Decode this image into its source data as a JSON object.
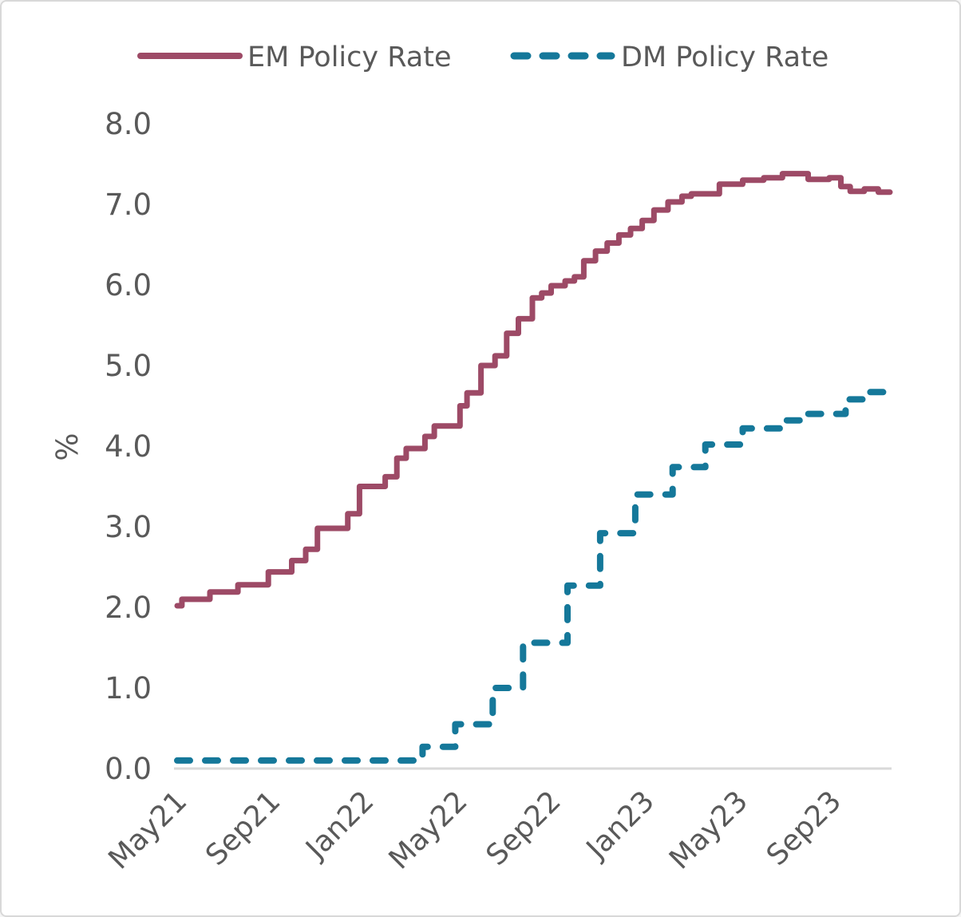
{
  "figure": {
    "background": "#ffffff",
    "border_color": "#d8d8d8",
    "text_color": "#595959",
    "axis_line_color": "#d9d9d9"
  },
  "legend": [
    {
      "label": "EM Policy Rate",
      "color": "#9d4a66",
      "style": "solid"
    },
    {
      "label": "DM Policy Rate",
      "color": "#15789a",
      "style": "dashed"
    }
  ],
  "chart_data": {
    "type": "line",
    "title": "",
    "xlabel": "",
    "ylabel": "%",
    "ylim": [
      0,
      8
    ],
    "ytick_labels": [
      "0.0",
      "1.0",
      "2.0",
      "3.0",
      "4.0",
      "5.0",
      "6.0",
      "7.0",
      "8.0"
    ],
    "xlim_months": [
      0,
      30.5
    ],
    "x_unit": "months since May 2021",
    "xtick_positions_months": [
      0,
      4,
      8,
      12,
      16,
      20,
      24,
      28
    ],
    "xtick_labels": [
      "May21",
      "Sep21",
      "Jan22",
      "May22",
      "Sep22",
      "Jan23",
      "May23",
      "Sep23"
    ],
    "grid": false,
    "legend_position": "top",
    "interpolation": "step-after",
    "series": [
      {
        "name": "EM Policy Rate",
        "color": "#9d4a66",
        "line_style": "solid",
        "points_month_value": [
          [
            0,
            2.02
          ],
          [
            0.2,
            2.1
          ],
          [
            1.4,
            2.19
          ],
          [
            2.6,
            2.28
          ],
          [
            3.9,
            2.44
          ],
          [
            4.9,
            2.58
          ],
          [
            5.5,
            2.72
          ],
          [
            6.0,
            2.98
          ],
          [
            7.3,
            3.16
          ],
          [
            7.8,
            3.5
          ],
          [
            8.9,
            3.62
          ],
          [
            9.4,
            3.85
          ],
          [
            9.8,
            3.97
          ],
          [
            10.6,
            4.12
          ],
          [
            11.0,
            4.25
          ],
          [
            12.1,
            4.5
          ],
          [
            12.4,
            4.66
          ],
          [
            13.0,
            5.0
          ],
          [
            13.6,
            5.12
          ],
          [
            14.1,
            5.4
          ],
          [
            14.6,
            5.58
          ],
          [
            15.2,
            5.84
          ],
          [
            15.6,
            5.9
          ],
          [
            16.0,
            5.99
          ],
          [
            16.6,
            6.05
          ],
          [
            17.0,
            6.1
          ],
          [
            17.4,
            6.3
          ],
          [
            17.9,
            6.42
          ],
          [
            18.4,
            6.52
          ],
          [
            18.9,
            6.62
          ],
          [
            19.4,
            6.7
          ],
          [
            19.9,
            6.8
          ],
          [
            20.4,
            6.93
          ],
          [
            21.0,
            7.03
          ],
          [
            21.6,
            7.1
          ],
          [
            22.0,
            7.13
          ],
          [
            23.2,
            7.25
          ],
          [
            24.2,
            7.3
          ],
          [
            25.1,
            7.33
          ],
          [
            25.9,
            7.38
          ],
          [
            27.0,
            7.31
          ],
          [
            27.9,
            7.33
          ],
          [
            28.4,
            7.22
          ],
          [
            28.8,
            7.16
          ],
          [
            29.4,
            7.19
          ],
          [
            30.0,
            7.15
          ],
          [
            30.5,
            7.15
          ]
        ]
      },
      {
        "name": "DM Policy Rate",
        "color": "#15789a",
        "line_style": "dashed",
        "points_month_value": [
          [
            0,
            0.1
          ],
          [
            10.5,
            0.27
          ],
          [
            11.9,
            0.55
          ],
          [
            13.5,
            1.0
          ],
          [
            14.8,
            1.56
          ],
          [
            16.7,
            2.27
          ],
          [
            18.1,
            2.92
          ],
          [
            19.6,
            3.4
          ],
          [
            21.2,
            3.74
          ],
          [
            22.6,
            4.02
          ],
          [
            24.2,
            4.22
          ],
          [
            25.9,
            4.32
          ],
          [
            26.9,
            4.4
          ],
          [
            28.6,
            4.58
          ],
          [
            29.4,
            4.67
          ],
          [
            30.5,
            4.67
          ]
        ]
      }
    ]
  }
}
